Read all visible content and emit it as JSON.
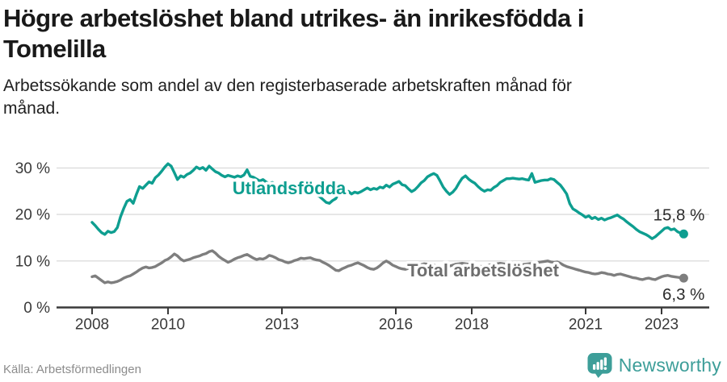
{
  "header": {
    "title_lines": [
      "Högre arbetslöshet bland utrikes- än inrikesfödda i",
      "Tomelilla"
    ],
    "subtitle_lines": [
      "Arbetssökande som andel av den registerbaserade arbetskraften månad för",
      "månad."
    ]
  },
  "footer": {
    "source": "Källa: Arbetsförmedlingen",
    "brand_name": "Newsworthy",
    "brand_icon": "speech-bubble-bar-chart-icon"
  },
  "colors": {
    "foreign_born_line": "#0e9e90",
    "total_line": "#7e7e7e",
    "total_label": "#6e6e6e",
    "axis": "#3a3a3a",
    "grid": "#dcdcdc",
    "title": "#191919",
    "subtitle": "#1f1f1f",
    "value_label": "#2b2b2b",
    "source": "#8c8c8c",
    "brand": "#3d9e99"
  },
  "chart_data": {
    "type": "line",
    "title": "Högre arbetslöshet bland utrikes- än inrikesfödda i Tomelilla",
    "subtitle": "Arbetssökande som andel av den registerbaserade arbetskraften månad för månad.",
    "source": "Källa: Arbetsförmedlingen",
    "unit": "percent of registered labour force, monthly",
    "x_start": 2008.0,
    "x_step": 0.083333,
    "x_end": 2023.583,
    "xticks": [
      2008,
      2010,
      2013,
      2016,
      2018,
      2021,
      2023
    ],
    "yticks": [
      {
        "value": 0,
        "label": "0 %"
      },
      {
        "value": 10,
        "label": "10 %"
      },
      {
        "value": 20,
        "label": "20 %"
      },
      {
        "value": 30,
        "label": "30 %"
      }
    ],
    "ylim": [
      0,
      33
    ],
    "grid": "horizontal",
    "legend": "inline-labels",
    "series": [
      {
        "name": "Utlandsfödda",
        "color": "#0e9e90",
        "label_color": "#0e9e90",
        "end_label": "15,8 %",
        "end_value": 15.8,
        "values": [
          18.3,
          17.6,
          16.8,
          16.1,
          15.7,
          16.4,
          16.1,
          16.3,
          17.2,
          19.5,
          21.3,
          22.8,
          23.2,
          22.4,
          24.3,
          26.0,
          25.6,
          26.3,
          27.0,
          26.7,
          27.9,
          28.5,
          29.3,
          30.2,
          30.9,
          30.4,
          29.0,
          27.5,
          28.3,
          28.0,
          28.6,
          28.9,
          29.5,
          30.2,
          29.8,
          30.1,
          29.5,
          30.4,
          29.8,
          29.2,
          28.9,
          28.4,
          28.1,
          28.4,
          28.2,
          28.0,
          28.3,
          28.1,
          28.5,
          29.6,
          28.2,
          28.0,
          27.6,
          27.2,
          27.5,
          27.0,
          26.6,
          26.9,
          26.4,
          26.2,
          26.0,
          26.3,
          25.8,
          25.4,
          25.7,
          25.2,
          24.9,
          25.2,
          24.8,
          24.4,
          24.7,
          24.2,
          23.8,
          23.2,
          22.6,
          22.4,
          23.0,
          23.4,
          24.6,
          25.1,
          24.6,
          25.0,
          24.4,
          24.8,
          24.6,
          24.9,
          25.3,
          25.7,
          25.3,
          25.6,
          25.4,
          25.9,
          25.7,
          26.3,
          25.9,
          26.5,
          26.8,
          27.1,
          26.4,
          26.2,
          25.5,
          24.9,
          25.3,
          26.0,
          26.8,
          27.3,
          28.1,
          28.5,
          28.8,
          28.4,
          27.2,
          25.9,
          25.0,
          24.3,
          24.8,
          25.6,
          26.8,
          27.8,
          28.3,
          27.6,
          27.1,
          26.7,
          26.0,
          25.4,
          25.0,
          25.3,
          25.2,
          25.8,
          26.2,
          26.9,
          27.3,
          27.7,
          27.7,
          27.8,
          27.7,
          27.6,
          27.7,
          27.5,
          27.4,
          28.8,
          26.9,
          27.1,
          27.3,
          27.4,
          27.4,
          27.7,
          27.5,
          26.9,
          26.3,
          25.4,
          24.4,
          22.3,
          21.2,
          20.8,
          20.3,
          19.9,
          19.4,
          19.7,
          19.1,
          19.4,
          18.9,
          19.2,
          18.8,
          19.1,
          19.3,
          19.6,
          19.9,
          19.4,
          19.0,
          18.4,
          17.9,
          17.4,
          16.8,
          16.3,
          16.0,
          15.7,
          15.3,
          14.8,
          15.2,
          15.8,
          16.4,
          17.0,
          17.2,
          16.7,
          16.9,
          16.3,
          16.0,
          15.8
        ]
      },
      {
        "name": "Total arbetslöshet",
        "color": "#7e7e7e",
        "label_color": "#6e6e6e",
        "end_label": "6,3 %",
        "end_value": 6.3,
        "values": [
          6.6,
          6.8,
          6.3,
          5.8,
          5.3,
          5.5,
          5.3,
          5.4,
          5.6,
          5.9,
          6.3,
          6.6,
          6.8,
          7.2,
          7.6,
          8.1,
          8.5,
          8.7,
          8.5,
          8.6,
          8.8,
          9.2,
          9.6,
          10.1,
          10.4,
          10.9,
          11.5,
          11.1,
          10.4,
          10.0,
          10.2,
          10.4,
          10.7,
          10.9,
          11.1,
          11.4,
          11.6,
          12.0,
          12.2,
          11.7,
          11.0,
          10.5,
          10.1,
          9.7,
          10.0,
          10.4,
          10.7,
          10.9,
          11.2,
          11.4,
          11.0,
          10.6,
          10.3,
          10.5,
          10.4,
          10.7,
          11.2,
          11.0,
          10.7,
          10.3,
          10.1,
          9.8,
          9.6,
          9.8,
          10.1,
          10.3,
          10.6,
          10.5,
          10.6,
          10.7,
          10.4,
          10.2,
          10.1,
          9.7,
          9.4,
          9.0,
          8.5,
          8.0,
          7.9,
          8.3,
          8.6,
          8.9,
          9.1,
          9.4,
          9.6,
          9.3,
          9.0,
          8.6,
          8.3,
          8.2,
          8.5,
          9.0,
          9.6,
          10.0,
          9.6,
          9.1,
          8.8,
          8.5,
          8.3,
          8.2,
          8.4,
          8.6,
          8.8,
          9.0,
          9.2,
          9.4,
          9.3,
          9.2,
          9.1,
          8.9,
          8.7,
          8.6,
          8.7,
          8.9,
          9.1,
          9.3,
          9.4,
          9.5,
          9.4,
          9.3,
          9.2,
          9.0,
          8.9,
          8.8,
          8.9,
          9.0,
          9.2,
          9.3,
          9.4,
          9.5,
          9.4,
          9.3,
          9.2,
          9.1,
          9.0,
          9.1,
          9.2,
          9.3,
          9.4,
          9.5,
          9.6,
          9.7,
          9.8,
          9.9,
          10.0,
          9.8,
          9.7,
          9.8,
          9.5,
          9.1,
          8.8,
          8.6,
          8.4,
          8.2,
          8.0,
          7.8,
          7.6,
          7.5,
          7.3,
          7.2,
          7.3,
          7.5,
          7.4,
          7.2,
          7.1,
          6.9,
          7.1,
          7.2,
          7.0,
          6.8,
          6.6,
          6.4,
          6.3,
          6.1,
          6.0,
          6.2,
          6.3,
          6.1,
          6.0,
          6.3,
          6.6,
          6.8,
          6.9,
          6.7,
          6.6,
          6.5,
          6.4,
          6.3
        ]
      }
    ]
  }
}
